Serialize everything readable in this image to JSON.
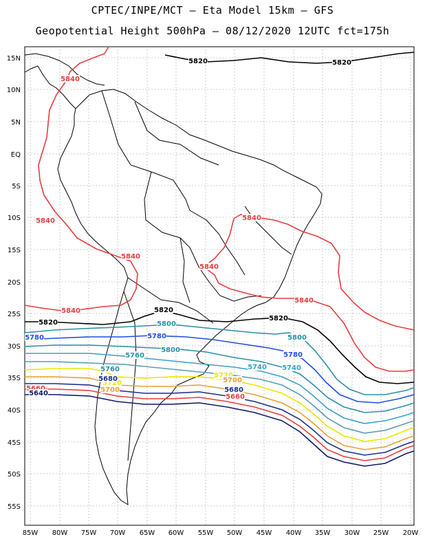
{
  "title_line1": "CPTEC/INPE/MCT –  Eta Model 15km – GFS",
  "title_line2": "Geopotential Height 500hPa – 08/12/2020 12UTC fct=175h",
  "lat_labels": [
    "15N",
    "10N",
    "5N",
    "EQ",
    "5S",
    "10S",
    "15S",
    "20S",
    "25S",
    "30S",
    "35S",
    "40S",
    "45S",
    "50S",
    "55S"
  ],
  "lon_labels": [
    "85W",
    "80W",
    "75W",
    "70W",
    "65W",
    "60W",
    "55W",
    "50W",
    "45W",
    "40W",
    "35W",
    "30W",
    "25W",
    "20W"
  ],
  "contour_colors": {
    "5840": "#e83c3c",
    "5820": "#000000",
    "5800": "#2a8fa8",
    "5780": "#1f4fe0",
    "5760": "#2a8fa8",
    "5740": "#3aa0c8",
    "5720": "#e8e800",
    "5700": "#e8a030",
    "5680": "#1a2e8c",
    "5660": "#e83c3c",
    "5640": "#0a1a6a"
  },
  "contour_labels": [
    {
      "text": "5820",
      "color": "#000000"
    },
    {
      "text": "5820",
      "color": "#000000"
    },
    {
      "text": "5840",
      "color": "#e83c3c"
    },
    {
      "text": "5840",
      "color": "#e83c3c"
    },
    {
      "text": "5840",
      "color": "#e83c3c"
    },
    {
      "text": "5840",
      "color": "#e83c3c"
    },
    {
      "text": "5840",
      "color": "#e83c3c"
    },
    {
      "text": "5840",
      "color": "#e83c3c"
    },
    {
      "text": "5840",
      "color": "#e83c3c"
    },
    {
      "text": "5820",
      "color": "#000000"
    },
    {
      "text": "5820",
      "color": "#000000"
    },
    {
      "text": "5820",
      "color": "#000000"
    },
    {
      "text": "5800",
      "color": "#2a8fa8"
    },
    {
      "text": "5800",
      "color": "#2a8fa8"
    },
    {
      "text": "5780",
      "color": "#1f4fe0"
    },
    {
      "text": "5780",
      "color": "#1f4fe0"
    },
    {
      "text": "5780",
      "color": "#1f4fe0"
    },
    {
      "text": "5800",
      "color": "#2a8fa8"
    },
    {
      "text": "5760",
      "color": "#2a8fa8"
    },
    {
      "text": "5740",
      "color": "#3aa0c8"
    },
    {
      "text": "5740",
      "color": "#3aa0c8"
    },
    {
      "text": "5760",
      "color": "#2a8fa8"
    },
    {
      "text": "5720",
      "color": "#e8e800"
    },
    {
      "text": "5720",
      "color": "#e8e800"
    },
    {
      "text": "5700",
      "color": "#e8a030"
    },
    {
      "text": "5680",
      "color": "#1a2e8c"
    },
    {
      "text": "5660",
      "color": "#e83c3c"
    },
    {
      "text": "5640",
      "color": "#0a1a6a"
    },
    {
      "text": "5700",
      "color": "#e8a030"
    },
    {
      "text": "5680",
      "color": "#1a2e8c"
    },
    {
      "text": "5660",
      "color": "#e83c3c"
    }
  ]
}
